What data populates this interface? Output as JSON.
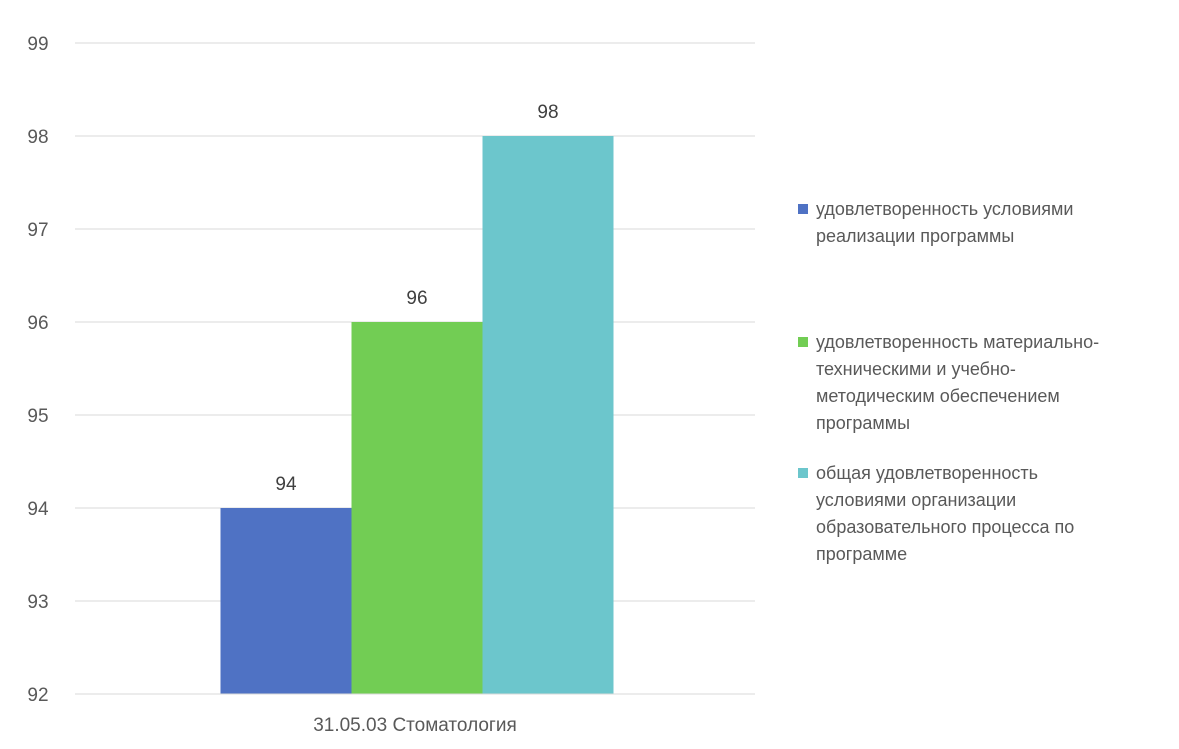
{
  "chart_data": {
    "type": "bar",
    "categories": [
      "31.05.03 Стоматология"
    ],
    "series": [
      {
        "name": "удовлетворенность условиями реализации программы",
        "values": [
          94
        ],
        "color": "#4f72c4"
      },
      {
        "name": "удовлетворенность материально-техническими и учебно-методическим обеспечением программы",
        "values": [
          96
        ],
        "color": "#72cd54"
      },
      {
        "name": "общая удовлетворенность условиями организации образовательного процесса по программе",
        "values": [
          98
        ],
        "color": "#6cc6cc"
      }
    ],
    "ylim": [
      92,
      99
    ],
    "yticks": [
      "92",
      "93",
      "94",
      "95",
      "96",
      "97",
      "98",
      "99"
    ],
    "data_labels": [
      "94",
      "96",
      "98"
    ],
    "grid": true,
    "legend_position": "right",
    "title": "",
    "xlabel": "",
    "ylabel": ""
  },
  "legend": {
    "items": [
      {
        "text": "удовлетворенность условиями\nреализации программы",
        "color": "#4f72c4"
      },
      {
        "text": "удовлетворенность материально-\nтехническими и учебно-\nметодическим обеспечением\nпрограммы",
        "color": "#72cd54"
      },
      {
        "text": "общая удовлетворенность\nусловиями организации\nобразовательного процесса по\nпрограмме",
        "color": "#6cc6cc"
      }
    ]
  }
}
